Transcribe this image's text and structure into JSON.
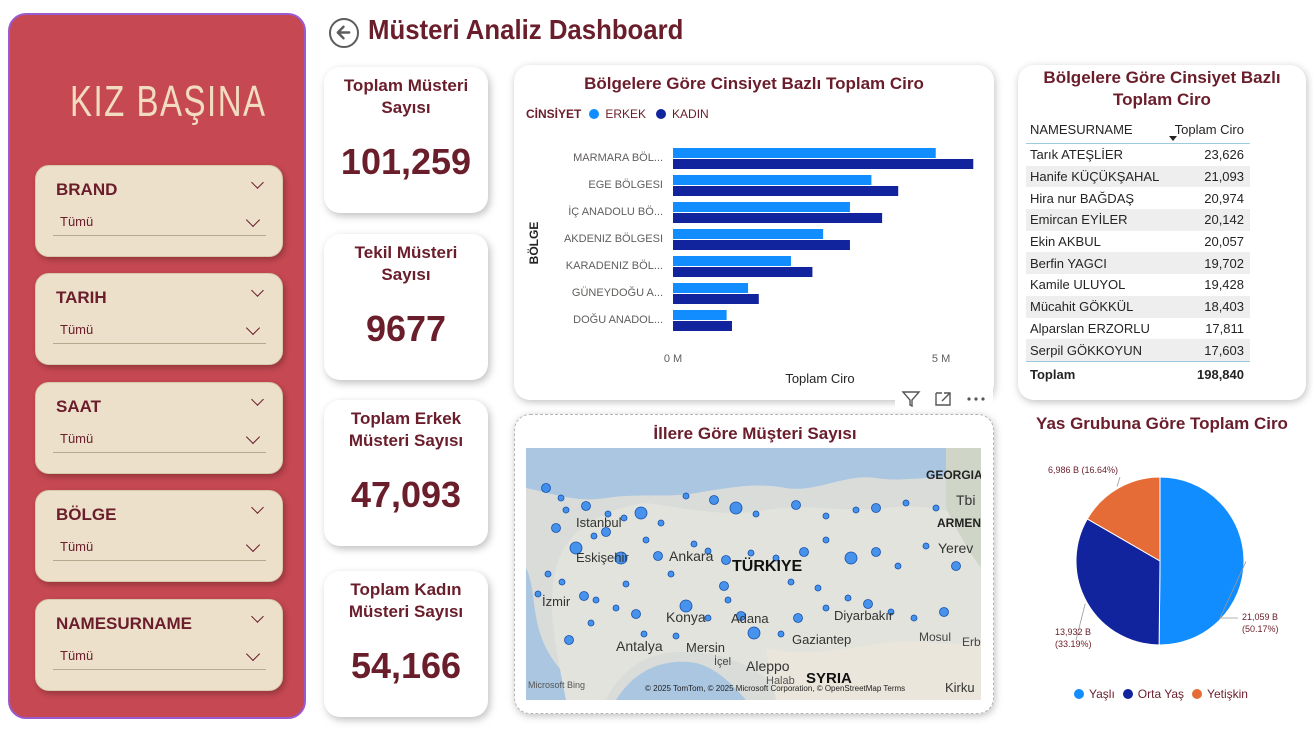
{
  "sidebar": {
    "logo_text": "KIZ BAŞINA",
    "slicers": [
      {
        "title": "BRAND",
        "value": "Tümü"
      },
      {
        "title": "TARIH",
        "value": "Tümü"
      },
      {
        "title": "SAAT",
        "value": "Tümü"
      },
      {
        "title": "BÖLGE",
        "value": "Tümü"
      },
      {
        "title": "NAMESURNAME",
        "value": "Tümü"
      }
    ]
  },
  "header": {
    "title": "Müsteri Analiz Dashboard",
    "back_icon": "arrow-left-circle"
  },
  "kpis": [
    {
      "label": "Toplam Müsteri Sayısı",
      "value": "101,259"
    },
    {
      "label": "Tekil Müsteri Sayısı",
      "value": "9677"
    },
    {
      "label": "Toplam Erkek Müsteri Sayısı",
      "value": "47,093"
    },
    {
      "label": "Toplam Kadın Müsteri Sayısı",
      "value": "54,166"
    }
  ],
  "bar_panel": {
    "title": "Bölgelere Göre Cinsiyet Bazlı Toplam Ciro",
    "legend_title": "CİNSİYET",
    "legend_items": [
      "ERKEK",
      "KADIN"
    ],
    "y_axis_title": "BÖLGE",
    "x_axis_title": "Toplam Ciro",
    "x_ticks": [
      "0 M",
      "5 M"
    ]
  },
  "chart_data": [
    {
      "type": "bar",
      "orientation": "horizontal",
      "title": "Bölgelere Göre Cinsiyet Bazlı Toplam Ciro",
      "xlabel": "Toplam Ciro",
      "ylabel": "BÖLGE",
      "categories": [
        "MARMARA BÖL...",
        "EGE BÖLGESI",
        "İÇ ANADOLU BÖ...",
        "AKDENIZ BÖLGESI",
        "KARADENIZ BÖL...",
        "GÜNEYDOĞU A...",
        "DOĞU ANADOL..."
      ],
      "series": [
        {
          "name": "ERKEK",
          "color": "#118dff",
          "values": [
            4.9,
            3.7,
            3.3,
            2.8,
            2.2,
            1.4,
            1.0
          ]
        },
        {
          "name": "KADIN",
          "color": "#12239e",
          "values": [
            5.6,
            4.2,
            3.9,
            3.3,
            2.6,
            1.6,
            1.1
          ]
        }
      ],
      "xlim": [
        0,
        5.8
      ],
      "x_ticks": [
        "0 M",
        "5 M"
      ],
      "grid": false,
      "legend_position": "top-left"
    },
    {
      "type": "pie",
      "title": "Yas Grubuna Göre Toplam Ciro",
      "slices": [
        {
          "name": "Yaşlı",
          "value": 21.059,
          "percent": 50.17,
          "label": "21,059 B (50.17%)",
          "color": "#118dff"
        },
        {
          "name": "Orta Yaş",
          "value": 13.932,
          "percent": 33.19,
          "label": "13,932 B (33.19%)",
          "color": "#12239e"
        },
        {
          "name": "Yetişkin",
          "value": 6.986,
          "percent": 16.64,
          "label": "6,986 B (16.64%)",
          "color": "#e66c37"
        }
      ],
      "legend_position": "bottom"
    }
  ],
  "table_panel": {
    "title_line1": "Bölgelere Göre Cinsiyet Bazlı",
    "title_line2": "Toplam Ciro",
    "col1": "NAMESURNAME",
    "col2": "Toplam Ciro",
    "rows": [
      {
        "name": "Tarık ATEŞLİER",
        "value": "23,626"
      },
      {
        "name": "Hanife KÜÇÜKŞAHAL",
        "value": "21,093"
      },
      {
        "name": "Hira nur BAĞDAŞ",
        "value": "20,974"
      },
      {
        "name": "Emircan EYİLER",
        "value": "20,142"
      },
      {
        "name": "Ekin AKBUL",
        "value": "20,057"
      },
      {
        "name": "Berfin YAGCI",
        "value": "19,702"
      },
      {
        "name": "Kamile ULUYOL",
        "value": "19,428"
      },
      {
        "name": "Mücahit GÖKKÜL",
        "value": "18,403"
      },
      {
        "name": "Alparslan ERZORLU",
        "value": "17,811"
      },
      {
        "name": "Serpil GÖKKOYUN",
        "value": "17,603"
      }
    ],
    "total_label": "Toplam",
    "total_value": "198,840"
  },
  "map_panel": {
    "title": "İllere Göre Müşteri Sayısı",
    "labels": {
      "country": "TÜRKIYE",
      "istanbul": "Istanbul",
      "eskisehir": "Eskişehir",
      "ankara": "Ankara",
      "izmir": "İzmir",
      "konya": "Konya",
      "adana": "Adana",
      "antalya": "Antalya",
      "mersin": "Mersin",
      "icel": "İçel",
      "gaziantep": "Gaziantep",
      "diyarbakir": "Diyarbakır",
      "aleppo": "Aleppo",
      "halab": "Halab",
      "syria": "SYRIA",
      "mosul": "Mosul",
      "erbil": "Erb",
      "georgia": "GEORGIA",
      "tbilisi": "Tbi",
      "armenia": "ARMEN",
      "yerevan": "Yerev",
      "kirkuk": "Kirku"
    },
    "attribution": "© 2025 TomTom, © 2025 Microsoft Corporation, © OpenStreetMap  Terms",
    "bing": "Microsoft Bing"
  },
  "pie_panel": {
    "title": "Yas Grubuna Göre Toplam Ciro",
    "legend": [
      "Yaşlı",
      "Orta Yaş",
      "Yetişkin"
    ]
  },
  "colors": {
    "brand_maroon": "#6a1d2a",
    "sidebar_red": "#c64852",
    "slicer_beige": "#ece0cb",
    "erkek_blue": "#118dff",
    "kadin_navy": "#12239e",
    "yetiskin_orange": "#e66c37"
  }
}
